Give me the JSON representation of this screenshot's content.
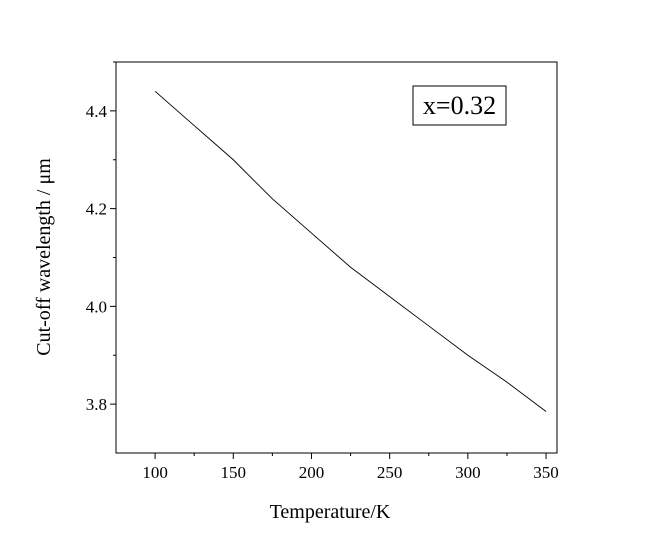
{
  "chart_data": {
    "type": "line",
    "xlabel": "Temperature/K",
    "ylabel": "Cut-off wavelength / μm",
    "xlim": [
      75,
      357
    ],
    "ylim": [
      3.7,
      4.5
    ],
    "xticks": [
      100,
      150,
      200,
      250,
      300,
      350
    ],
    "xtick_labels": [
      "100",
      "150",
      "200",
      "250",
      "300",
      "350"
    ],
    "yticks": [
      3.8,
      4.0,
      4.2,
      4.4
    ],
    "ytick_labels": [
      "3.8",
      "4.0",
      "4.2",
      "4.4"
    ],
    "grid": false,
    "annotation": "x=0.32",
    "series": [
      {
        "x": [
          100,
          125,
          150,
          175,
          200,
          225,
          250,
          275,
          300,
          325,
          350
        ],
        "y": [
          4.44,
          4.37,
          4.3,
          4.22,
          4.15,
          4.08,
          4.02,
          3.96,
          3.9,
          3.845,
          3.785
        ],
        "color": "#000000"
      }
    ]
  }
}
